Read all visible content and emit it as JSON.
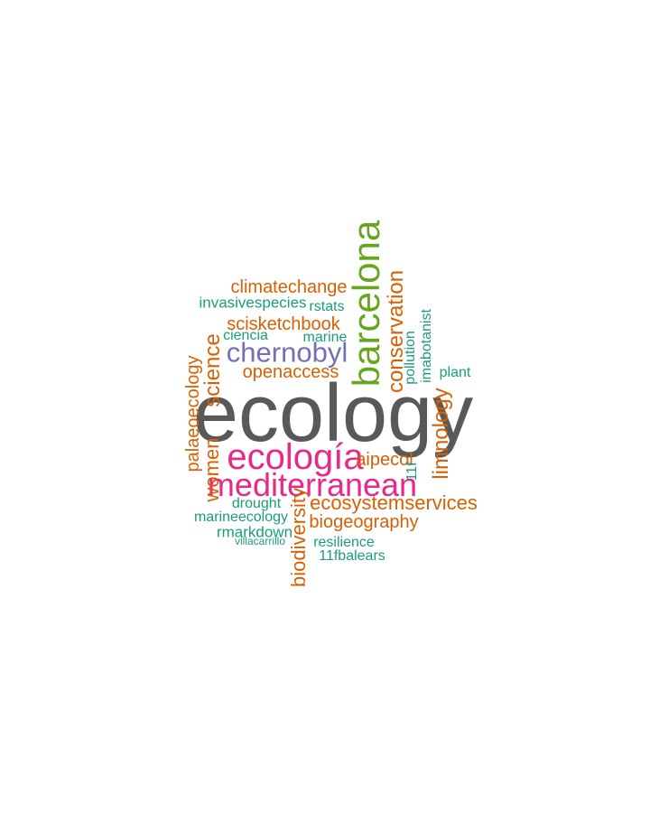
{
  "palette": {
    "dark_gray": "#595959",
    "green": "#66a61e",
    "pink": "#e7298a",
    "purple": "#7570b3",
    "orange": "#d95f02",
    "teal": "#1b9e77"
  },
  "words": [
    {
      "text": "ecology",
      "color": "#595959"
    },
    {
      "text": "barcelona",
      "color": "#66a61e"
    },
    {
      "text": "ecología",
      "color": "#e7298a"
    },
    {
      "text": "mediterranean",
      "color": "#e7298a"
    },
    {
      "text": "chernobyl",
      "color": "#7570b3"
    },
    {
      "text": "climatechange",
      "color": "#d95f02"
    },
    {
      "text": "scisketchbook",
      "color": "#d95f02"
    },
    {
      "text": "openaccess",
      "color": "#d95f02"
    },
    {
      "text": "conservation",
      "color": "#d95f02"
    },
    {
      "text": "limnology",
      "color": "#d95f02"
    },
    {
      "text": "science",
      "color": "#d95f02"
    },
    {
      "text": "palaeoecology",
      "color": "#d95f02"
    },
    {
      "text": "women",
      "color": "#d95f02"
    },
    {
      "text": "ecosystemservices",
      "color": "#d95f02"
    },
    {
      "text": "biogeography",
      "color": "#d95f02"
    },
    {
      "text": "biodiversity",
      "color": "#d95f02"
    },
    {
      "text": "aipecol",
      "color": "#d95f02"
    },
    {
      "text": "invasivespecies",
      "color": "#1b9e77"
    },
    {
      "text": "rstats",
      "color": "#1b9e77"
    },
    {
      "text": "ciencia",
      "color": "#1b9e77"
    },
    {
      "text": "marine",
      "color": "#1b9e77"
    },
    {
      "text": "pollution",
      "color": "#1b9e77"
    },
    {
      "text": "imabotanist",
      "color": "#1b9e77"
    },
    {
      "text": "plant",
      "color": "#1b9e77"
    },
    {
      "text": "11f",
      "color": "#1b9e77"
    },
    {
      "text": "drought",
      "color": "#1b9e77"
    },
    {
      "text": "marineecology",
      "color": "#1b9e77"
    },
    {
      "text": "rmarkdown",
      "color": "#1b9e77"
    },
    {
      "text": "villacarrillo",
      "color": "#1b9e77"
    },
    {
      "text": "resilience",
      "color": "#1b9e77"
    },
    {
      "text": "11fbalears",
      "color": "#1b9e77"
    }
  ]
}
